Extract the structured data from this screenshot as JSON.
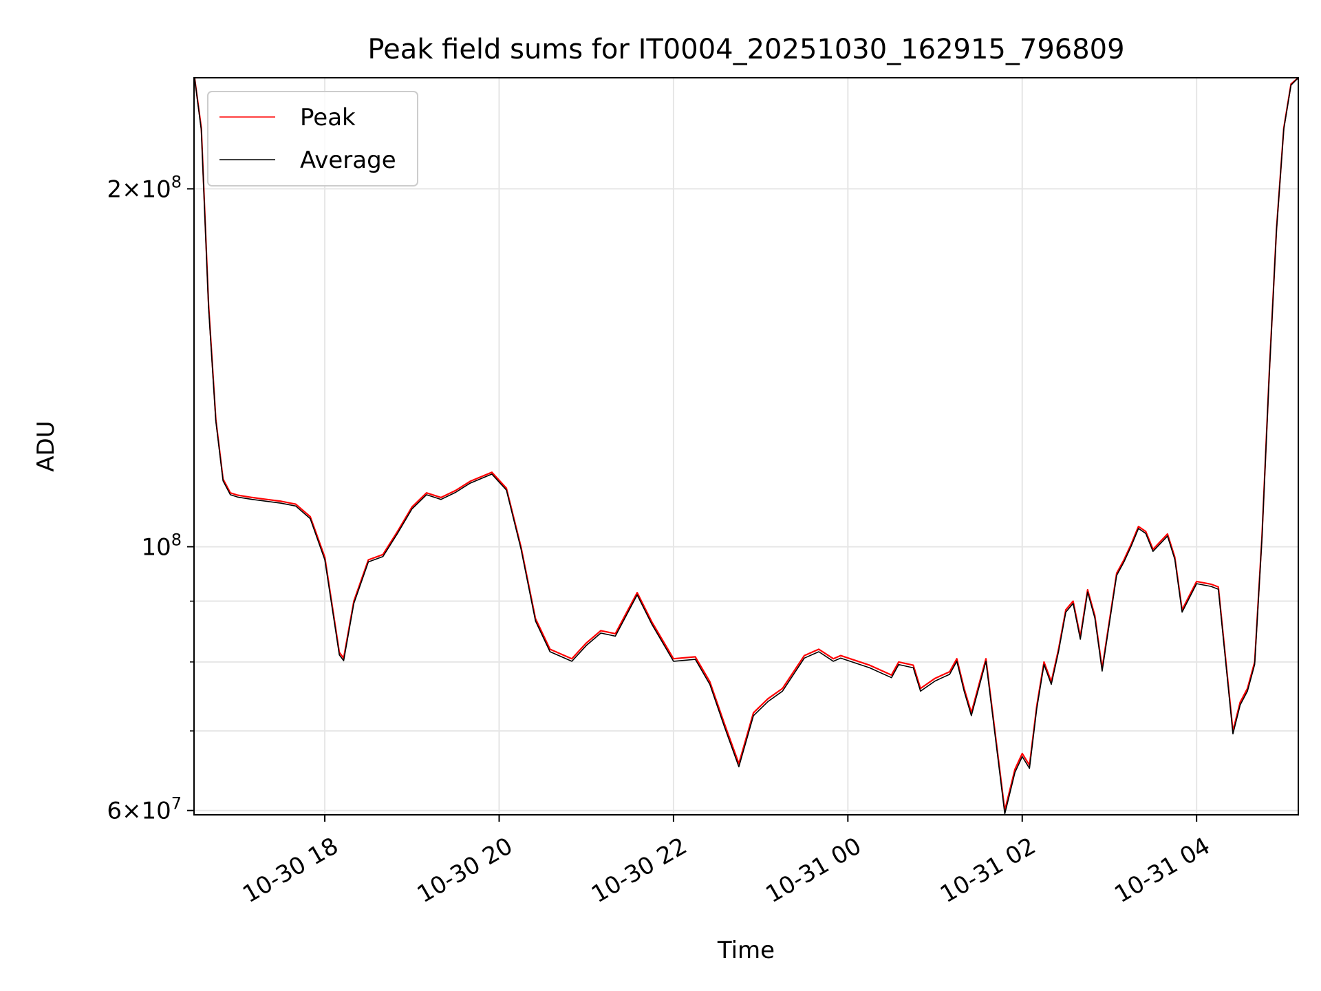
{
  "chart_data": {
    "type": "line",
    "title": "Peak field sums for IT0004_20251030_162915_796809",
    "xlabel": "Time",
    "ylabel": "ADU",
    "yscale": "log",
    "xlim": [
      "2025-10-30 16:30",
      "2025-10-31 05:10"
    ],
    "ylim": [
      59500000,
      248000000
    ],
    "grid": true,
    "legend_position": "top-left",
    "x_ticks": [
      {
        "value": "2025-10-30 18:00",
        "label": "10-30 18"
      },
      {
        "value": "2025-10-30 20:00",
        "label": "10-30 20"
      },
      {
        "value": "2025-10-30 22:00",
        "label": "10-30 22"
      },
      {
        "value": "2025-10-31 00:00",
        "label": "10-31 00"
      },
      {
        "value": "2025-10-31 02:00",
        "label": "10-31 02"
      },
      {
        "value": "2025-10-31 04:00",
        "label": "10-31 04"
      }
    ],
    "y_ticks_major": [
      {
        "value": 60000000,
        "base": "6",
        "exp": "7"
      },
      {
        "value": 100000000,
        "base": "",
        "exp": "8"
      },
      {
        "value": 200000000,
        "base": "2",
        "exp": "8"
      }
    ],
    "y_ticks_minor": [
      70000000,
      80000000,
      90000000
    ],
    "x": [
      "2025-10-30 16:30",
      "2025-10-30 16:35",
      "2025-10-30 16:40",
      "2025-10-30 16:45",
      "2025-10-30 16:50",
      "2025-10-30 16:55",
      "2025-10-30 17:00",
      "2025-10-30 17:10",
      "2025-10-30 17:20",
      "2025-10-30 17:30",
      "2025-10-30 17:40",
      "2025-10-30 17:50",
      "2025-10-30 18:00",
      "2025-10-30 18:10",
      "2025-10-30 18:13",
      "2025-10-30 18:20",
      "2025-10-30 18:30",
      "2025-10-30 18:40",
      "2025-10-30 18:50",
      "2025-10-30 19:00",
      "2025-10-30 19:10",
      "2025-10-30 19:20",
      "2025-10-30 19:30",
      "2025-10-30 19:40",
      "2025-10-30 19:55",
      "2025-10-30 20:05",
      "2025-10-30 20:15",
      "2025-10-30 20:25",
      "2025-10-30 20:35",
      "2025-10-30 20:50",
      "2025-10-30 21:00",
      "2025-10-30 21:10",
      "2025-10-30 21:20",
      "2025-10-30 21:35",
      "2025-10-30 21:45",
      "2025-10-30 22:00",
      "2025-10-30 22:15",
      "2025-10-30 22:25",
      "2025-10-30 22:35",
      "2025-10-30 22:45",
      "2025-10-30 22:55",
      "2025-10-30 23:05",
      "2025-10-30 23:15",
      "2025-10-30 23:30",
      "2025-10-30 23:40",
      "2025-10-30 23:50",
      "2025-10-30 23:55",
      "2025-10-31 00:15",
      "2025-10-31 00:30",
      "2025-10-31 00:35",
      "2025-10-31 00:45",
      "2025-10-31 00:50",
      "2025-10-31 01:00",
      "2025-10-31 01:05",
      "2025-10-31 01:10",
      "2025-10-31 01:15",
      "2025-10-31 01:20",
      "2025-10-31 01:25",
      "2025-10-31 01:35",
      "2025-10-31 01:48",
      "2025-10-31 01:55",
      "2025-10-31 02:00",
      "2025-10-31 02:05",
      "2025-10-31 02:10",
      "2025-10-31 02:15",
      "2025-10-31 02:20",
      "2025-10-31 02:25",
      "2025-10-31 02:30",
      "2025-10-31 02:35",
      "2025-10-31 02:40",
      "2025-10-31 02:45",
      "2025-10-31 02:50",
      "2025-10-31 02:55",
      "2025-10-31 03:05",
      "2025-10-31 03:10",
      "2025-10-31 03:15",
      "2025-10-31 03:20",
      "2025-10-31 03:25",
      "2025-10-31 03:30",
      "2025-10-31 03:40",
      "2025-10-31 03:45",
      "2025-10-31 03:50",
      "2025-10-31 04:00",
      "2025-10-31 04:10",
      "2025-10-31 04:15",
      "2025-10-31 04:25",
      "2025-10-31 04:30",
      "2025-10-31 04:35",
      "2025-10-31 04:40",
      "2025-10-31 04:45",
      "2025-10-31 04:50",
      "2025-10-31 04:55",
      "2025-10-31 05:00",
      "2025-10-31 05:05",
      "2025-10-31 05:10"
    ],
    "series": [
      {
        "name": "Peak",
        "color": "#ff0000",
        "values": [
          250000000,
          225000000,
          160000000,
          128000000,
          114000000,
          111000000,
          110500000,
          110000000,
          109600000,
          109200000,
          108600000,
          106000000,
          98000000,
          81500000,
          80600000,
          90000000,
          97500000,
          98500000,
          103000000,
          108000000,
          111000000,
          110000000,
          111500000,
          113500000,
          115500000,
          112000000,
          100000000,
          87000000,
          82000000,
          80500000,
          83000000,
          85000000,
          84500000,
          91500000,
          86500000,
          80500000,
          80800000,
          77000000,
          71000000,
          65700000,
          72500000,
          74500000,
          76000000,
          81000000,
          82000000,
          80500000,
          81000000,
          79500000,
          78000000,
          80000000,
          79500000,
          76000000,
          77500000,
          78000000,
          78500000,
          80500000,
          76000000,
          72500000,
          80500000,
          60000000,
          65000000,
          67000000,
          65500000,
          73500000,
          80000000,
          77000000,
          82000000,
          88500000,
          90000000,
          84000000,
          92000000,
          87500000,
          79000000,
          95000000,
          97500000,
          100500000,
          104000000,
          103000000,
          99500000,
          102500000,
          98000000,
          88500000,
          93500000,
          93000000,
          92500000,
          70000000,
          74000000,
          76000000,
          80000000,
          102000000,
          140000000,
          185000000,
          225000000,
          245000000,
          248000000
        ]
      },
      {
        "name": "Average",
        "color": "#000000",
        "values": [
          250000000,
          224000000,
          159000000,
          127500000,
          113600000,
          110600000,
          110100000,
          109600000,
          109200000,
          108800000,
          108200000,
          105600000,
          97500000,
          81100000,
          80200000,
          89600000,
          97100000,
          98100000,
          102600000,
          107600000,
          110600000,
          109600000,
          111100000,
          113100000,
          115100000,
          111600000,
          99600000,
          86600000,
          81600000,
          80100000,
          82600000,
          84600000,
          84100000,
          91100000,
          86100000,
          80100000,
          80400000,
          76600000,
          70600000,
          65300000,
          72100000,
          74100000,
          75600000,
          80600000,
          81600000,
          80100000,
          80600000,
          79100000,
          77600000,
          79600000,
          79100000,
          75600000,
          77100000,
          77600000,
          78100000,
          80100000,
          75600000,
          72100000,
          80100000,
          59600000,
          64600000,
          66600000,
          65100000,
          73100000,
          79600000,
          76600000,
          81600000,
          88100000,
          89600000,
          83600000,
          91600000,
          87100000,
          78600000,
          94600000,
          97100000,
          100100000,
          103600000,
          102600000,
          99100000,
          102100000,
          97600000,
          88100000,
          93100000,
          92600000,
          92100000,
          69600000,
          73600000,
          75600000,
          79600000,
          101600000,
          139500000,
          184500000,
          224500000,
          244500000,
          248000000
        ]
      }
    ]
  }
}
